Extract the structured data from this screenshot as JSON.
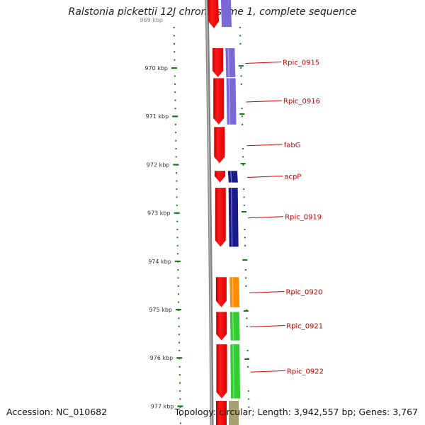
{
  "title": "Ralstonia pickettii 12J chromosome 1, complete sequence",
  "accession": "Accession: NC_010682",
  "summary": "Topology: circular; Length: 3,942,557 bp; Genes: 3,767",
  "scale": {
    "partial_top_label": "969 kbp",
    "ticks": [
      "970 kbp",
      "971 kbp",
      "972 kbp",
      "973 kbp",
      "974 kbp",
      "975 kbp",
      "976 kbp",
      "977 kbp"
    ]
  },
  "genes": [
    {
      "name": "Rpic_0915",
      "start_kbp": 969.59,
      "end_kbp": 970.19,
      "track_color": "#7b68d8"
    },
    {
      "name": "Rpic_0916",
      "start_kbp": 970.21,
      "end_kbp": 971.17,
      "track_color": "#7b68d8"
    },
    {
      "name": "fabG",
      "start_kbp": 971.22,
      "end_kbp": 971.97,
      "track_color": ""
    },
    {
      "name": "acpP",
      "start_kbp": 972.13,
      "end_kbp": 972.37,
      "track_color": "#1a1a8c"
    },
    {
      "name": "Rpic_0919",
      "start_kbp": 972.48,
      "end_kbp": 973.7,
      "track_color": "#1a1a8c"
    },
    {
      "name": "Rpic_0920",
      "start_kbp": 974.33,
      "end_kbp": 974.95,
      "track_color": "#ff8c00"
    },
    {
      "name": "Rpic_0921",
      "start_kbp": 975.05,
      "end_kbp": 975.64,
      "track_color": "#33cc33"
    },
    {
      "name": "Rpic_0922",
      "start_kbp": 975.72,
      "end_kbp": 976.84,
      "track_color": "#33cc33"
    }
  ],
  "colors": {
    "gene": "#ee0000",
    "backbone": "#808080",
    "ticks": "#1a7a1a",
    "label": "#cc0000",
    "top_partial_purple": "#7b68d8",
    "bottom_partial_olive": "#a8a070"
  }
}
